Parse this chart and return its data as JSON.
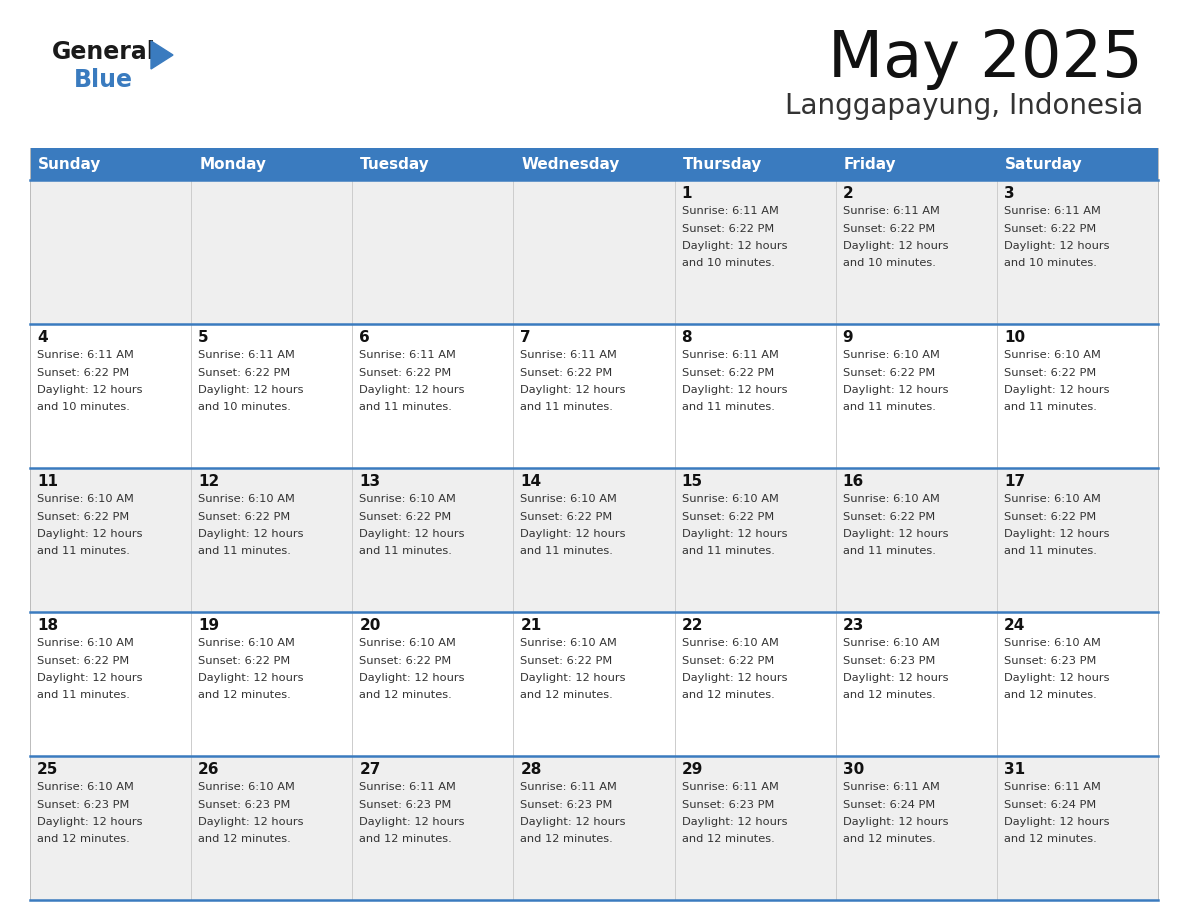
{
  "title": "May 2025",
  "subtitle": "Langgapayung, Indonesia",
  "days_of_week": [
    "Sunday",
    "Monday",
    "Tuesday",
    "Wednesday",
    "Thursday",
    "Friday",
    "Saturday"
  ],
  "header_bg": "#3a7bbf",
  "header_text": "#ffffff",
  "row_bg_light": "#efefef",
  "row_bg_white": "#ffffff",
  "cell_text_color": "#333333",
  "day_num_color": "#111111",
  "border_color": "#3a7bbf",
  "logo_general_color": "#1a1a1a",
  "logo_blue_color": "#3a7bbf",
  "logo_triangle_color": "#3a7bbf",
  "weeks": [
    [
      {
        "date": "",
        "sunrise": "",
        "sunset": "",
        "daylight1": "",
        "daylight2": ""
      },
      {
        "date": "",
        "sunrise": "",
        "sunset": "",
        "daylight1": "",
        "daylight2": ""
      },
      {
        "date": "",
        "sunrise": "",
        "sunset": "",
        "daylight1": "",
        "daylight2": ""
      },
      {
        "date": "",
        "sunrise": "",
        "sunset": "",
        "daylight1": "",
        "daylight2": ""
      },
      {
        "date": "1",
        "sunrise": "6:11 AM",
        "sunset": "6:22 PM",
        "daylight1": "12 hours",
        "daylight2": "and 10 minutes."
      },
      {
        "date": "2",
        "sunrise": "6:11 AM",
        "sunset": "6:22 PM",
        "daylight1": "12 hours",
        "daylight2": "and 10 minutes."
      },
      {
        "date": "3",
        "sunrise": "6:11 AM",
        "sunset": "6:22 PM",
        "daylight1": "12 hours",
        "daylight2": "and 10 minutes."
      }
    ],
    [
      {
        "date": "4",
        "sunrise": "6:11 AM",
        "sunset": "6:22 PM",
        "daylight1": "12 hours",
        "daylight2": "and 10 minutes."
      },
      {
        "date": "5",
        "sunrise": "6:11 AM",
        "sunset": "6:22 PM",
        "daylight1": "12 hours",
        "daylight2": "and 10 minutes."
      },
      {
        "date": "6",
        "sunrise": "6:11 AM",
        "sunset": "6:22 PM",
        "daylight1": "12 hours",
        "daylight2": "and 11 minutes."
      },
      {
        "date": "7",
        "sunrise": "6:11 AM",
        "sunset": "6:22 PM",
        "daylight1": "12 hours",
        "daylight2": "and 11 minutes."
      },
      {
        "date": "8",
        "sunrise": "6:11 AM",
        "sunset": "6:22 PM",
        "daylight1": "12 hours",
        "daylight2": "and 11 minutes."
      },
      {
        "date": "9",
        "sunrise": "6:10 AM",
        "sunset": "6:22 PM",
        "daylight1": "12 hours",
        "daylight2": "and 11 minutes."
      },
      {
        "date": "10",
        "sunrise": "6:10 AM",
        "sunset": "6:22 PM",
        "daylight1": "12 hours",
        "daylight2": "and 11 minutes."
      }
    ],
    [
      {
        "date": "11",
        "sunrise": "6:10 AM",
        "sunset": "6:22 PM",
        "daylight1": "12 hours",
        "daylight2": "and 11 minutes."
      },
      {
        "date": "12",
        "sunrise": "6:10 AM",
        "sunset": "6:22 PM",
        "daylight1": "12 hours",
        "daylight2": "and 11 minutes."
      },
      {
        "date": "13",
        "sunrise": "6:10 AM",
        "sunset": "6:22 PM",
        "daylight1": "12 hours",
        "daylight2": "and 11 minutes."
      },
      {
        "date": "14",
        "sunrise": "6:10 AM",
        "sunset": "6:22 PM",
        "daylight1": "12 hours",
        "daylight2": "and 11 minutes."
      },
      {
        "date": "15",
        "sunrise": "6:10 AM",
        "sunset": "6:22 PM",
        "daylight1": "12 hours",
        "daylight2": "and 11 minutes."
      },
      {
        "date": "16",
        "sunrise": "6:10 AM",
        "sunset": "6:22 PM",
        "daylight1": "12 hours",
        "daylight2": "and 11 minutes."
      },
      {
        "date": "17",
        "sunrise": "6:10 AM",
        "sunset": "6:22 PM",
        "daylight1": "12 hours",
        "daylight2": "and 11 minutes."
      }
    ],
    [
      {
        "date": "18",
        "sunrise": "6:10 AM",
        "sunset": "6:22 PM",
        "daylight1": "12 hours",
        "daylight2": "and 11 minutes."
      },
      {
        "date": "19",
        "sunrise": "6:10 AM",
        "sunset": "6:22 PM",
        "daylight1": "12 hours",
        "daylight2": "and 12 minutes."
      },
      {
        "date": "20",
        "sunrise": "6:10 AM",
        "sunset": "6:22 PM",
        "daylight1": "12 hours",
        "daylight2": "and 12 minutes."
      },
      {
        "date": "21",
        "sunrise": "6:10 AM",
        "sunset": "6:22 PM",
        "daylight1": "12 hours",
        "daylight2": "and 12 minutes."
      },
      {
        "date": "22",
        "sunrise": "6:10 AM",
        "sunset": "6:22 PM",
        "daylight1": "12 hours",
        "daylight2": "and 12 minutes."
      },
      {
        "date": "23",
        "sunrise": "6:10 AM",
        "sunset": "6:23 PM",
        "daylight1": "12 hours",
        "daylight2": "and 12 minutes."
      },
      {
        "date": "24",
        "sunrise": "6:10 AM",
        "sunset": "6:23 PM",
        "daylight1": "12 hours",
        "daylight2": "and 12 minutes."
      }
    ],
    [
      {
        "date": "25",
        "sunrise": "6:10 AM",
        "sunset": "6:23 PM",
        "daylight1": "12 hours",
        "daylight2": "and 12 minutes."
      },
      {
        "date": "26",
        "sunrise": "6:10 AM",
        "sunset": "6:23 PM",
        "daylight1": "12 hours",
        "daylight2": "and 12 minutes."
      },
      {
        "date": "27",
        "sunrise": "6:11 AM",
        "sunset": "6:23 PM",
        "daylight1": "12 hours",
        "daylight2": "and 12 minutes."
      },
      {
        "date": "28",
        "sunrise": "6:11 AM",
        "sunset": "6:23 PM",
        "daylight1": "12 hours",
        "daylight2": "and 12 minutes."
      },
      {
        "date": "29",
        "sunrise": "6:11 AM",
        "sunset": "6:23 PM",
        "daylight1": "12 hours",
        "daylight2": "and 12 minutes."
      },
      {
        "date": "30",
        "sunrise": "6:11 AM",
        "sunset": "6:24 PM",
        "daylight1": "12 hours",
        "daylight2": "and 12 minutes."
      },
      {
        "date": "31",
        "sunrise": "6:11 AM",
        "sunset": "6:24 PM",
        "daylight1": "12 hours",
        "daylight2": "and 12 minutes."
      }
    ]
  ]
}
